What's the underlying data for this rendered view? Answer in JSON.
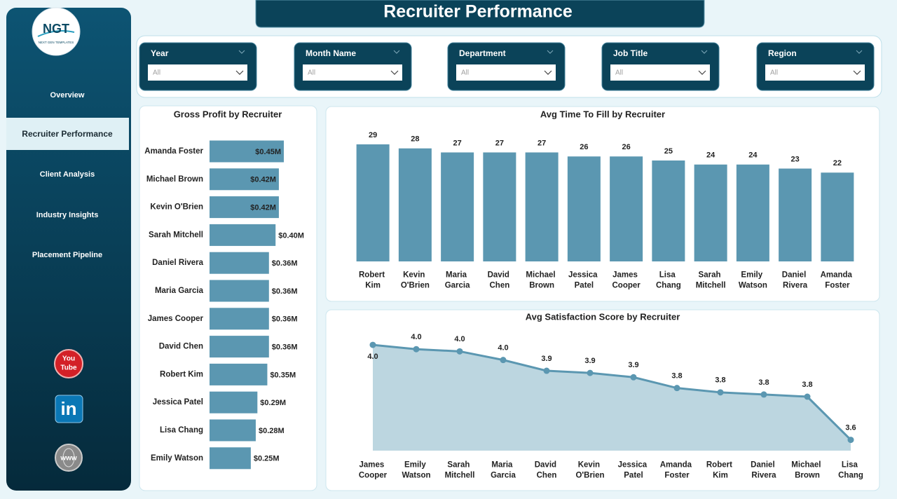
{
  "header": {
    "title": "Recruiter Performance"
  },
  "logo": {
    "text": "NGT",
    "subtitle": "NEXT GEN TEMPLATES"
  },
  "nav": [
    "Overview",
    "Recruiter Performance",
    "Client Analysis",
    "Industry Insights",
    "Placement Pipeline"
  ],
  "filters": [
    {
      "label": "Year",
      "value": "All"
    },
    {
      "label": "Month Name",
      "value": "All"
    },
    {
      "label": "Department",
      "value": "All"
    },
    {
      "label": "Job Title",
      "value": "All"
    },
    {
      "label": "Region",
      "value": "All"
    }
  ],
  "social": {
    "youtube": [
      "You",
      "Tube"
    ],
    "linkedin": "in",
    "web": "www"
  },
  "chart_data": [
    {
      "type": "bar",
      "horizontal": true,
      "title": "Gross Profit by Recruiter",
      "categories": [
        "Amanda Foster",
        "Michael Brown",
        "Kevin O'Brien",
        "Sarah Mitchell",
        "Daniel Rivera",
        "Maria Garcia",
        "James Cooper",
        "David Chen",
        "Robert Kim",
        "Jessica Patel",
        "Lisa Chang",
        "Emily Watson"
      ],
      "values": [
        0.45,
        0.42,
        0.42,
        0.4,
        0.36,
        0.36,
        0.36,
        0.36,
        0.35,
        0.29,
        0.28,
        0.25
      ],
      "value_labels": [
        "$0.45M",
        "$0.42M",
        "$0.42M",
        "$0.40M",
        "$0.36M",
        "$0.36M",
        "$0.36M",
        "$0.36M",
        "$0.35M",
        "$0.29M",
        "$0.28M",
        "$0.25M"
      ],
      "color": "#5b97b1"
    },
    {
      "type": "bar",
      "horizontal": false,
      "title": "Avg Time To Fill by Recruiter",
      "categories": [
        "Robert Kim",
        "Kevin O'Brien",
        "Maria Garcia",
        "David Chen",
        "Michael Brown",
        "Jessica Patel",
        "James Cooper",
        "Lisa Chang",
        "Sarah Mitchell",
        "Emily Watson",
        "Daniel Rivera",
        "Amanda Foster"
      ],
      "values": [
        29,
        28,
        27,
        27,
        27,
        26,
        26,
        25,
        24,
        24,
        23,
        22
      ],
      "ylim": [
        0,
        30
      ],
      "color": "#5b97b1"
    },
    {
      "type": "area",
      "title": "Avg Satisfaction Score by Recruiter",
      "categories": [
        "James Cooper",
        "Emily Watson",
        "Sarah Mitchell",
        "Maria Garcia",
        "David Chen",
        "Kevin O'Brien",
        "Jessica Patel",
        "Amanda Foster",
        "Robert Kim",
        "Daniel Rivera",
        "Michael Brown",
        "Lisa Chang"
      ],
      "values": [
        4.04,
        4.02,
        4.01,
        3.97,
        3.92,
        3.91,
        3.89,
        3.84,
        3.82,
        3.81,
        3.8,
        3.6
      ],
      "value_labels": [
        "4.0",
        "4.0",
        "4.0",
        "4.0",
        "3.9",
        "3.9",
        "3.9",
        "3.8",
        "3.8",
        "3.8",
        "3.8",
        "3.6"
      ],
      "ylim": [
        3.55,
        4.1
      ],
      "color": "#5b97b1",
      "fill": "#bcd6e0"
    }
  ]
}
